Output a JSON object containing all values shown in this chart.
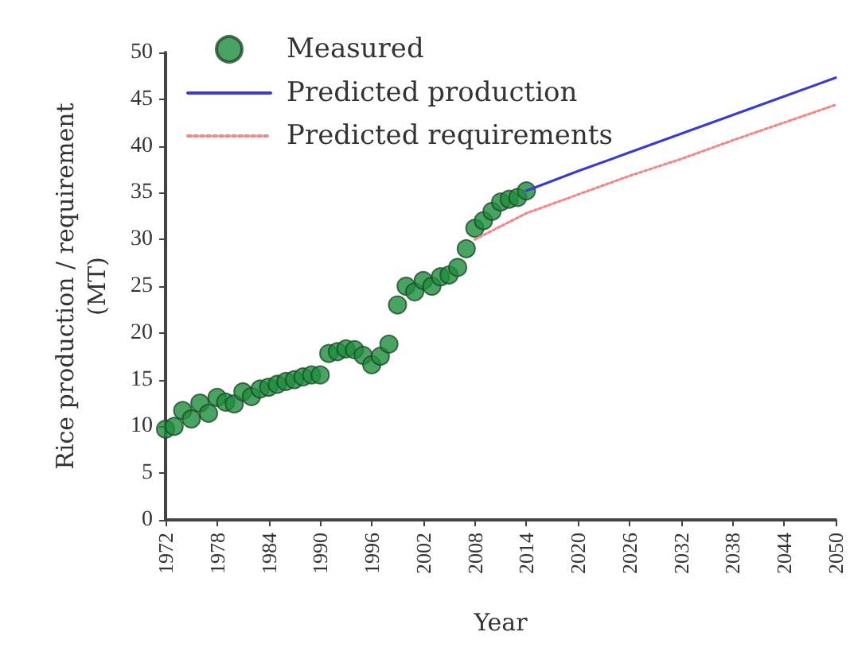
{
  "chart_data": {
    "type": "scatter",
    "xlabel": "Year",
    "ylabel": "Rice production / requirement\n(MT)",
    "xlim": [
      1972,
      2050
    ],
    "xticks": [
      1972,
      1978,
      1984,
      1990,
      1996,
      2002,
      2008,
      2014,
      2020,
      2026,
      2032,
      2038,
      2044,
      2050
    ],
    "ylim": [
      0,
      50
    ],
    "yticks": [
      0,
      5,
      10,
      15,
      20,
      25,
      30,
      35,
      40,
      45,
      50
    ],
    "grid": false,
    "legend": "top left",
    "series": [
      {
        "name": "Measured",
        "marker": "circle",
        "color": "#1e8c3c",
        "x": [
          1972,
          1973,
          1974,
          1975,
          1976,
          1977,
          1978,
          1979,
          1980,
          1981,
          1982,
          1983,
          1984,
          1985,
          1986,
          1987,
          1988,
          1989,
          1990,
          1991,
          1992,
          1993,
          1994,
          1995,
          1996,
          1997,
          1998,
          1999,
          2000,
          2001,
          2002,
          2003,
          2004,
          2005,
          2006,
          2007,
          2008,
          2009,
          2010,
          2011,
          2012,
          2013,
          2014
        ],
        "values": [
          9.7,
          10,
          11.7,
          10.8,
          12.5,
          11.4,
          13.1,
          12.6,
          12.4,
          13.7,
          13.2,
          14,
          14.2,
          14.5,
          14.8,
          15,
          15.3,
          15.5,
          15.5,
          17.8,
          18,
          18.3,
          18.2,
          17.6,
          16.6,
          17.5,
          18.8,
          23,
          25,
          24.4,
          25.6,
          25,
          26,
          26.2,
          27,
          29,
          31.2,
          32,
          33,
          34,
          34.3,
          34.5,
          35.2
        ]
      },
      {
        "name": "Predicted production",
        "type": "line",
        "marker": "none",
        "line_style": "solid",
        "color": "#3b3bd0",
        "x": [
          2014,
          2020,
          2026,
          2032,
          2038,
          2044,
          2050
        ],
        "values": [
          35.2,
          37.3,
          39.3,
          41.3,
          43.3,
          45.3,
          47.3
        ]
      },
      {
        "name": "Predicted requirements",
        "type": "line",
        "marker": "none",
        "line_style": "dotted",
        "color": "#f08a8a",
        "x": [
          2008,
          2014,
          2020,
          2026,
          2032,
          2038,
          2044,
          2050
        ],
        "values": [
          30,
          32.8,
          34.8,
          36.8,
          38.6,
          40.6,
          42.5,
          44.4
        ]
      }
    ]
  }
}
